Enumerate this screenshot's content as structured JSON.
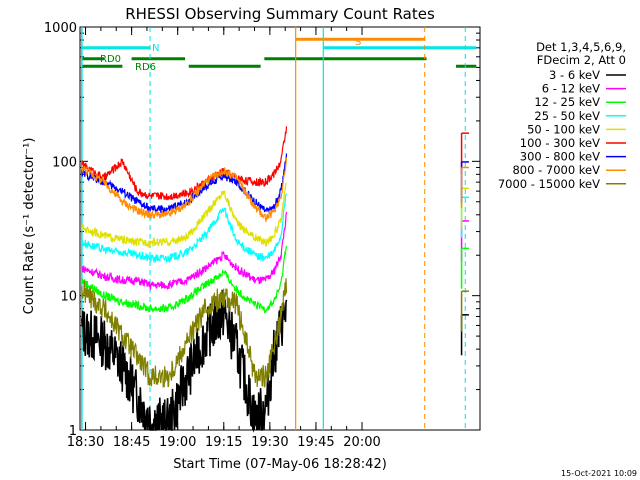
{
  "chart_data": {
    "type": "line",
    "title": "RHESSI Observing Summary Count Rates",
    "xlabel": "Start Time (07-May-06 18:28:42)",
    "ylabel": "Count Rate (s⁻¹ detector⁻¹)",
    "yscale": "log",
    "ylim": [
      1,
      1000
    ],
    "xlim_minutes": [
      18.47,
      20.64
    ],
    "x_ticks": [
      "18:30",
      "18:45",
      "19:00",
      "19:15",
      "19:30",
      "19:45",
      "20:00"
    ],
    "y_ticks": [
      "1",
      "10",
      "100",
      "1000"
    ],
    "timestamp": "15-Oct-2021 10:09",
    "legend_header": [
      "Det 1,3,4,5,6,9,",
      "FDecim 2, Att 0"
    ],
    "series": [
      {
        "name": "3 - 6 keV",
        "color": "#000000",
        "points": [
          [
            18.48,
            5.5
          ],
          [
            18.6,
            4.5
          ],
          [
            18.7,
            3.0
          ],
          [
            18.78,
            1.8
          ],
          [
            18.85,
            1.2
          ],
          [
            18.95,
            1.1
          ],
          [
            19.05,
            2.5
          ],
          [
            19.15,
            5.0
          ],
          [
            19.25,
            7.5
          ],
          [
            19.32,
            4.0
          ],
          [
            19.42,
            1.2
          ],
          [
            19.48,
            1.5
          ],
          [
            19.52,
            3.5
          ],
          [
            19.56,
            6.0
          ],
          [
            19.59,
            8.0
          ]
        ]
      },
      {
        "name": "6 - 12 keV",
        "color": "#ff00ff",
        "points": [
          [
            18.48,
            16
          ],
          [
            18.6,
            14
          ],
          [
            18.7,
            13
          ],
          [
            18.78,
            13
          ],
          [
            18.85,
            12
          ],
          [
            18.95,
            12
          ],
          [
            19.05,
            13
          ],
          [
            19.15,
            16
          ],
          [
            19.25,
            20
          ],
          [
            19.32,
            16
          ],
          [
            19.42,
            13
          ],
          [
            19.48,
            13
          ],
          [
            19.52,
            15
          ],
          [
            19.56,
            20
          ],
          [
            19.59,
            40
          ]
        ]
      },
      {
        "name": "12 - 25 keV",
        "color": "#00ff00",
        "points": [
          [
            18.48,
            13
          ],
          [
            18.6,
            10
          ],
          [
            18.7,
            9
          ],
          [
            18.78,
            8.5
          ],
          [
            18.85,
            8
          ],
          [
            18.95,
            8
          ],
          [
            19.05,
            9.5
          ],
          [
            19.15,
            12
          ],
          [
            19.25,
            15
          ],
          [
            19.32,
            11
          ],
          [
            19.42,
            8.5
          ],
          [
            19.48,
            8
          ],
          [
            19.52,
            9
          ],
          [
            19.56,
            12
          ],
          [
            19.59,
            25
          ]
        ]
      },
      {
        "name": "25 - 50 keV",
        "color": "#00ffff",
        "points": [
          [
            18.48,
            25
          ],
          [
            18.6,
            22
          ],
          [
            18.7,
            21
          ],
          [
            18.78,
            20
          ],
          [
            18.85,
            19
          ],
          [
            18.95,
            19
          ],
          [
            19.05,
            21
          ],
          [
            19.15,
            28
          ],
          [
            19.25,
            45
          ],
          [
            19.32,
            25
          ],
          [
            19.42,
            20
          ],
          [
            19.48,
            19
          ],
          [
            19.52,
            21
          ],
          [
            19.56,
            28
          ],
          [
            19.59,
            60
          ]
        ]
      },
      {
        "name": "50 - 100 keV",
        "color": "#e0e000",
        "points": [
          [
            18.48,
            32
          ],
          [
            18.6,
            28
          ],
          [
            18.7,
            26
          ],
          [
            18.78,
            25
          ],
          [
            18.85,
            25
          ],
          [
            18.95,
            25
          ],
          [
            19.05,
            27
          ],
          [
            19.15,
            40
          ],
          [
            19.25,
            60
          ],
          [
            19.32,
            35
          ],
          [
            19.42,
            27
          ],
          [
            19.48,
            25
          ],
          [
            19.52,
            28
          ],
          [
            19.56,
            36
          ],
          [
            19.59,
            70
          ]
        ]
      },
      {
        "name": "100 - 300 keV",
        "color": "#ff0000",
        "points": [
          [
            18.48,
            95
          ],
          [
            18.6,
            75
          ],
          [
            18.7,
            100
          ],
          [
            18.78,
            60
          ],
          [
            18.85,
            55
          ],
          [
            18.95,
            55
          ],
          [
            19.05,
            58
          ],
          [
            19.15,
            70
          ],
          [
            19.25,
            85
          ],
          [
            19.32,
            75
          ],
          [
            19.42,
            70
          ],
          [
            19.48,
            70
          ],
          [
            19.52,
            80
          ],
          [
            19.56,
            100
          ],
          [
            19.59,
            180
          ]
        ]
      },
      {
        "name": "300 - 800 keV",
        "color": "#0000ff",
        "points": [
          [
            18.48,
            82
          ],
          [
            18.6,
            70
          ],
          [
            18.7,
            60
          ],
          [
            18.78,
            50
          ],
          [
            18.85,
            44
          ],
          [
            18.95,
            44
          ],
          [
            19.05,
            50
          ],
          [
            19.15,
            65
          ],
          [
            19.25,
            78
          ],
          [
            19.32,
            70
          ],
          [
            19.42,
            50
          ],
          [
            19.48,
            42
          ],
          [
            19.52,
            45
          ],
          [
            19.56,
            60
          ],
          [
            19.59,
            110
          ]
        ]
      },
      {
        "name": "800 - 7000 keV",
        "color": "#ff8c00",
        "points": [
          [
            18.48,
            90
          ],
          [
            18.6,
            70
          ],
          [
            18.7,
            50
          ],
          [
            18.78,
            43
          ],
          [
            18.85,
            40
          ],
          [
            18.95,
            40
          ],
          [
            19.05,
            48
          ],
          [
            19.15,
            70
          ],
          [
            19.25,
            85
          ],
          [
            19.32,
            75
          ],
          [
            19.42,
            45
          ],
          [
            19.48,
            38
          ],
          [
            19.52,
            42
          ],
          [
            19.56,
            55
          ],
          [
            19.59,
            100
          ]
        ]
      },
      {
        "name": "7000 - 15000 keV",
        "color": "#808000",
        "points": [
          [
            18.48,
            11
          ],
          [
            18.6,
            8
          ],
          [
            18.7,
            5
          ],
          [
            18.78,
            3.5
          ],
          [
            18.85,
            2.5
          ],
          [
            18.95,
            2.5
          ],
          [
            19.05,
            4.5
          ],
          [
            19.15,
            8.0
          ],
          [
            19.25,
            10
          ],
          [
            19.32,
            8.5
          ],
          [
            19.42,
            2.5
          ],
          [
            19.48,
            2.5
          ],
          [
            19.52,
            4.0
          ],
          [
            19.56,
            7.0
          ],
          [
            19.59,
            12
          ]
        ]
      }
    ],
    "segment_labels": [
      {
        "text": "N",
        "color": "#00e5e5"
      },
      {
        "text": "S",
        "color": "#ff8c00"
      },
      {
        "text": "RD0",
        "color": "#008000"
      },
      {
        "text": "RD6",
        "color": "#008000"
      }
    ]
  }
}
